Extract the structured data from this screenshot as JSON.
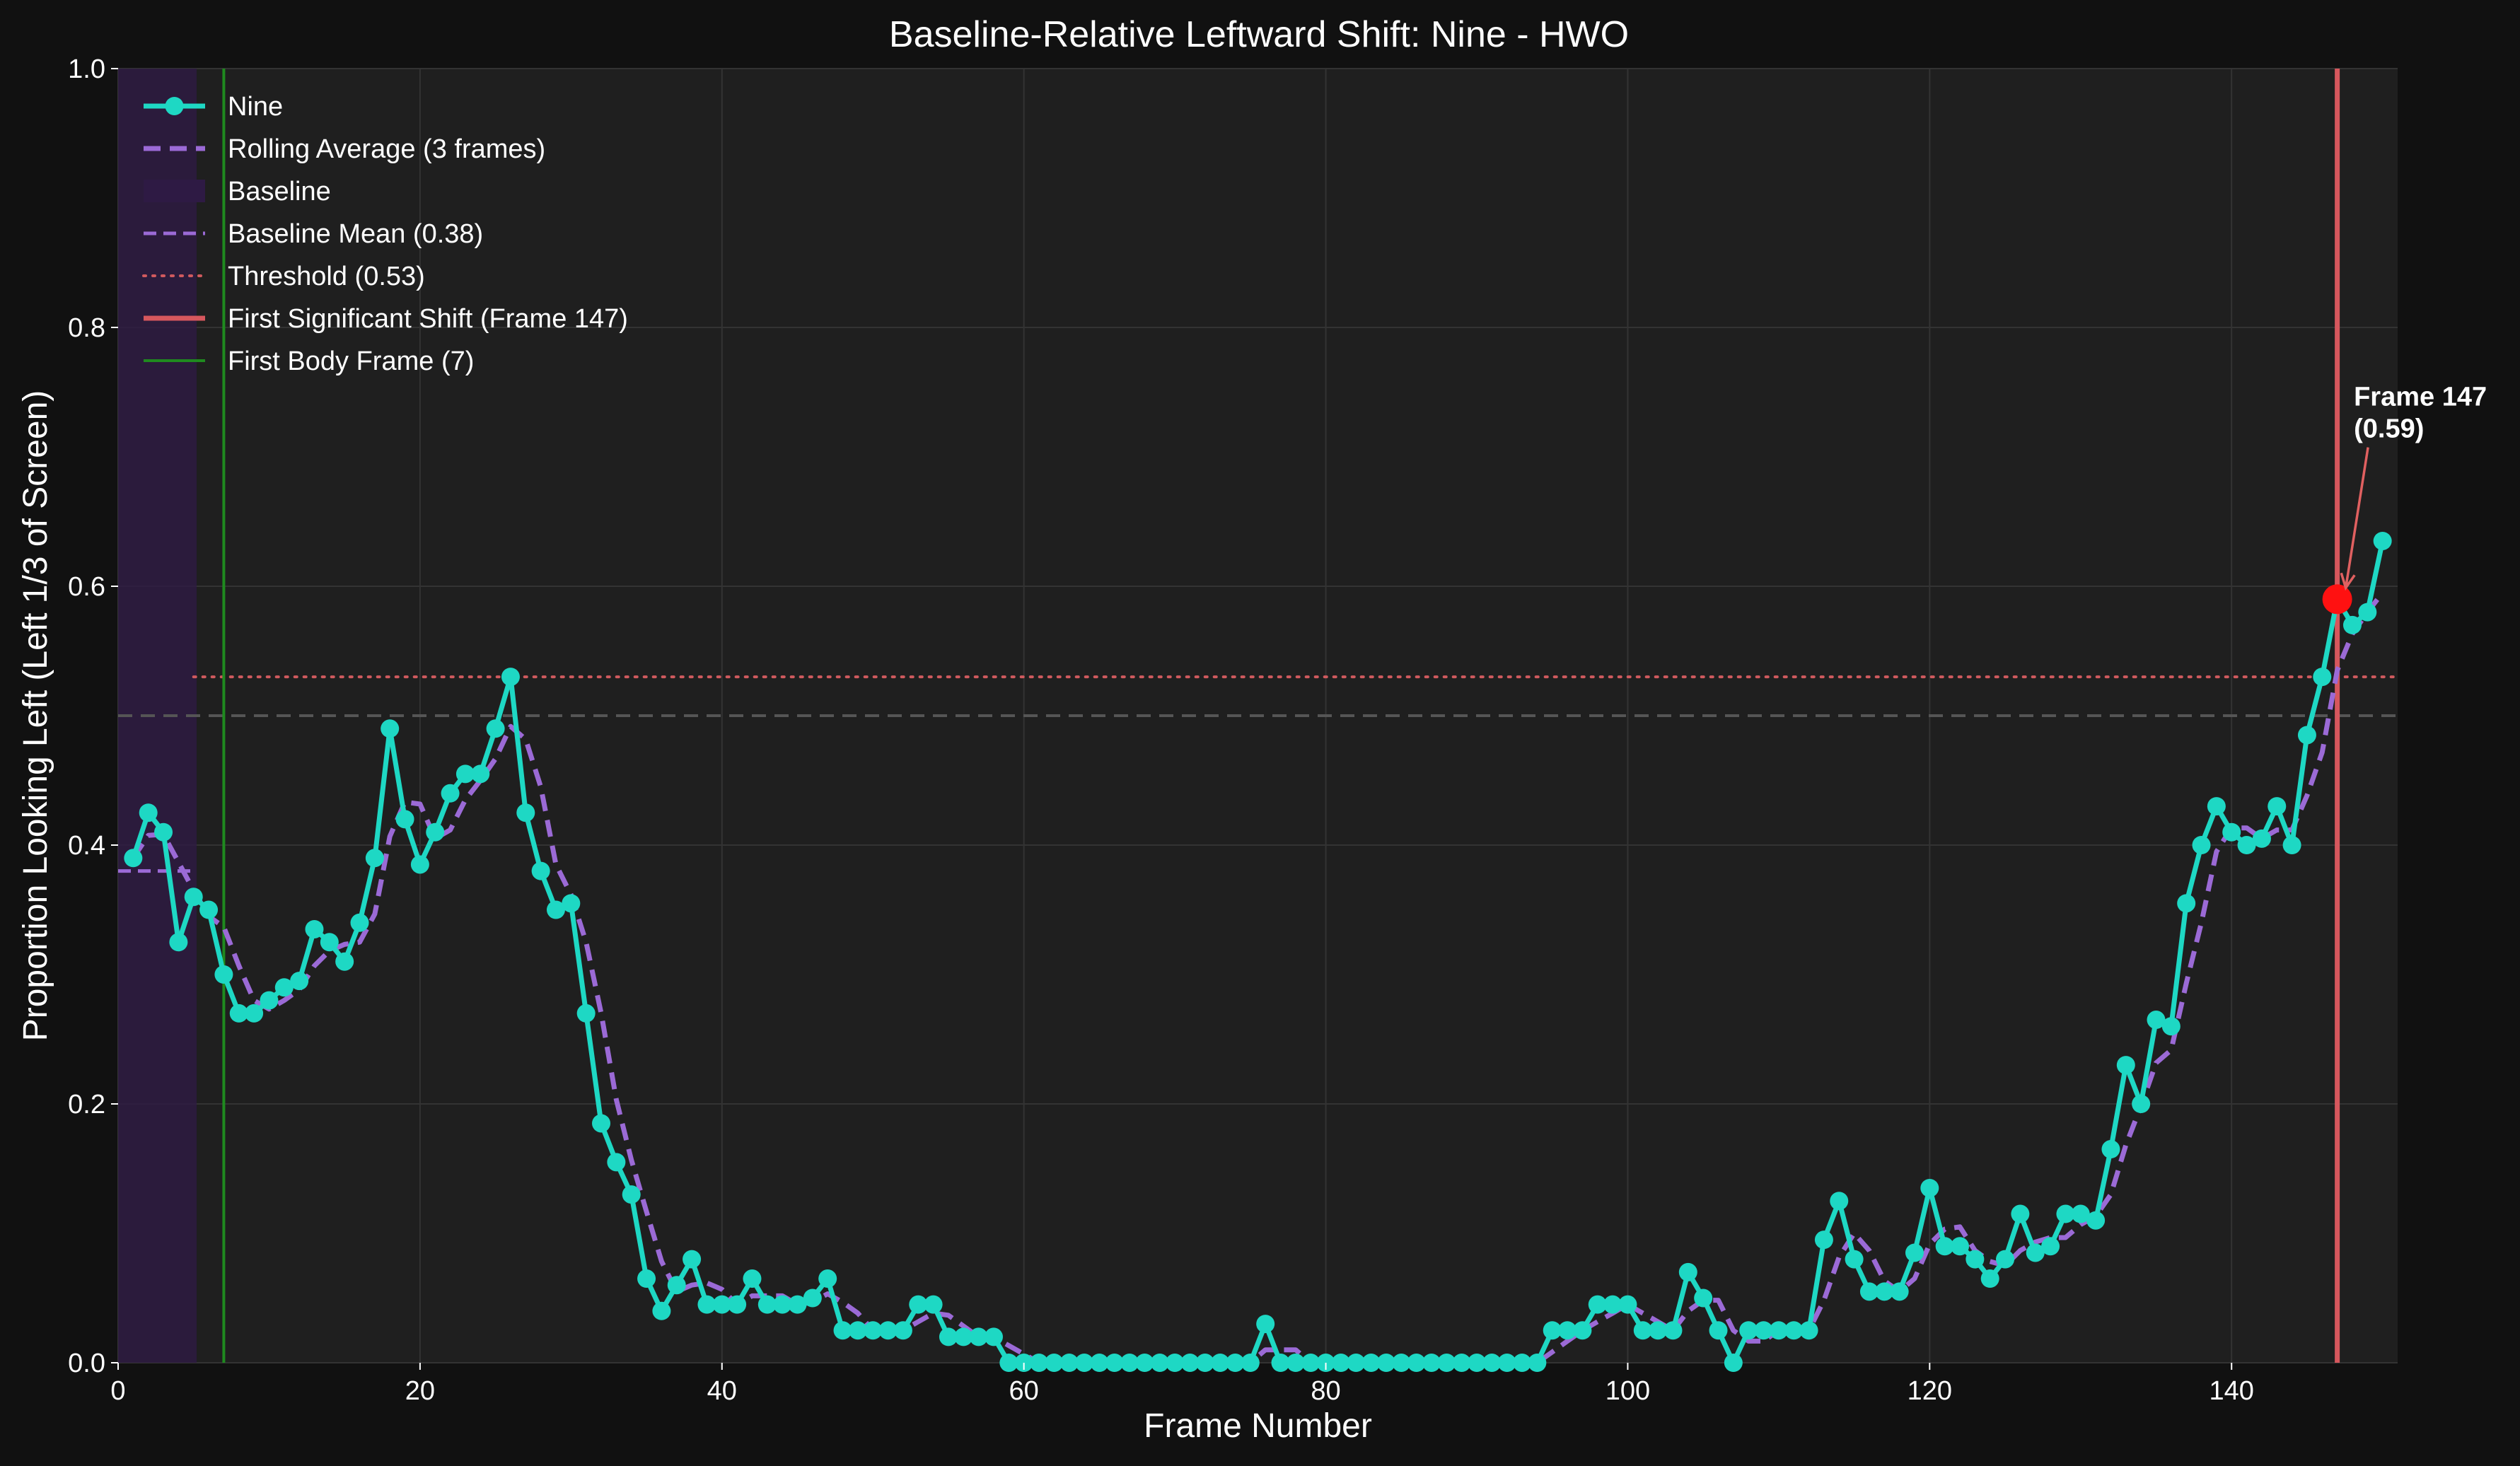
{
  "chart_data": {
    "type": "line",
    "title": "Baseline-Relative Leftward Shift: Nine - HWO",
    "xlabel": "Frame Number",
    "ylabel": "Proportion Looking Left (Left 1/3 of Screen)",
    "xlim": [
      0,
      151
    ],
    "ylim": [
      0,
      1.0
    ],
    "xticks": [
      0,
      20,
      40,
      60,
      80,
      100,
      120,
      140
    ],
    "yticks": [
      0.0,
      0.2,
      0.4,
      0.6,
      0.8,
      1.0
    ],
    "grid": true,
    "legend_position": "top-left",
    "colors": {
      "background": "#111111",
      "plot_background": "#1f1f1f",
      "series": "#1ed8c4",
      "rolling": "#9b6ad6",
      "baseline_band": "#2e1a44",
      "threshold": "#d05a5e",
      "shift_line": "#d6575d",
      "first_body": "#1f8a1f",
      "marker_highlight": "#ff1111",
      "center_line": "#555555"
    },
    "series": [
      {
        "name": "Nine",
        "x": [
          1,
          2,
          3,
          4,
          5,
          6,
          7,
          8,
          9,
          10,
          11,
          12,
          13,
          14,
          15,
          16,
          17,
          18,
          19,
          20,
          21,
          22,
          23,
          24,
          25,
          26,
          27,
          28,
          29,
          30,
          31,
          32,
          33,
          34,
          35,
          36,
          37,
          38,
          39,
          40,
          41,
          42,
          43,
          44,
          45,
          46,
          47,
          48,
          49,
          50,
          51,
          52,
          53,
          54,
          55,
          56,
          57,
          58,
          59,
          60,
          61,
          62,
          63,
          64,
          65,
          66,
          67,
          68,
          69,
          70,
          71,
          72,
          73,
          74,
          75,
          76,
          77,
          78,
          79,
          80,
          81,
          82,
          83,
          84,
          85,
          86,
          87,
          88,
          89,
          90,
          91,
          92,
          93,
          94,
          95,
          96,
          97,
          98,
          99,
          100,
          101,
          102,
          103,
          104,
          105,
          106,
          107,
          108,
          109,
          110,
          111,
          112,
          113,
          114,
          115,
          116,
          117,
          118,
          119,
          120,
          121,
          122,
          123,
          124,
          125,
          126,
          127,
          128,
          129,
          130,
          131,
          132,
          133,
          134,
          135,
          136,
          137,
          138,
          139,
          140,
          141,
          142,
          143,
          144,
          145,
          146,
          147,
          148,
          149,
          150
        ],
        "y": [
          0.39,
          0.425,
          0.41,
          0.325,
          0.36,
          0.35,
          0.3,
          0.27,
          0.27,
          0.28,
          0.29,
          0.295,
          0.335,
          0.325,
          0.31,
          0.34,
          0.39,
          0.49,
          0.42,
          0.385,
          0.41,
          0.44,
          0.455,
          0.455,
          0.49,
          0.53,
          0.425,
          0.38,
          0.35,
          0.355,
          0.27,
          0.185,
          0.155,
          0.13,
          0.065,
          0.04,
          0.06,
          0.08,
          0.045,
          0.045,
          0.045,
          0.065,
          0.045,
          0.045,
          0.045,
          0.05,
          0.065,
          0.025,
          0.025,
          0.025,
          0.025,
          0.025,
          0.045,
          0.045,
          0.02,
          0.02,
          0.02,
          0.02,
          0.0,
          0.0,
          0.0,
          0.0,
          0.0,
          0.0,
          0.0,
          0.0,
          0.0,
          0.0,
          0.0,
          0.0,
          0.0,
          0.0,
          0.0,
          0.0,
          0.0,
          0.03,
          0.0,
          0.0,
          0.0,
          0.0,
          0.0,
          0.0,
          0.0,
          0.0,
          0.0,
          0.0,
          0.0,
          0.0,
          0.0,
          0.0,
          0.0,
          0.0,
          0.0,
          0.0,
          0.025,
          0.025,
          0.025,
          0.045,
          0.045,
          0.045,
          0.025,
          0.025,
          0.025,
          0.07,
          0.05,
          0.025,
          0.0,
          0.025,
          0.025,
          0.025,
          0.025,
          0.025,
          0.095,
          0.125,
          0.08,
          0.055,
          0.055,
          0.055,
          0.085,
          0.135,
          0.09,
          0.09,
          0.08,
          0.065,
          0.08,
          0.115,
          0.085,
          0.09,
          0.115,
          0.115,
          0.11,
          0.165,
          0.23,
          0.2,
          0.265,
          0.26,
          0.355,
          0.4,
          0.43,
          0.41,
          0.4,
          0.405,
          0.43,
          0.4,
          0.485,
          0.53,
          0.59,
          0.57,
          0.58,
          0.635
        ]
      },
      {
        "name": "Rolling Average (3 frames)",
        "x": [
          1,
          2,
          3,
          4,
          5,
          6,
          7,
          8,
          9,
          10,
          11,
          12,
          13,
          14,
          15,
          16,
          17,
          18,
          19,
          20,
          21,
          22,
          23,
          24,
          25,
          26,
          27,
          28,
          29,
          30,
          31,
          32,
          33,
          34,
          35,
          36,
          37,
          38,
          39,
          40,
          41,
          42,
          43,
          44,
          45,
          46,
          47,
          48,
          49,
          50,
          51,
          52,
          53,
          54,
          55,
          56,
          57,
          58,
          59,
          60,
          61,
          62,
          63,
          64,
          65,
          66,
          67,
          68,
          69,
          70,
          71,
          72,
          73,
          74,
          75,
          76,
          77,
          78,
          79,
          80,
          81,
          82,
          83,
          84,
          85,
          86,
          87,
          88,
          89,
          90,
          91,
          92,
          93,
          94,
          95,
          96,
          97,
          98,
          99,
          100,
          101,
          102,
          103,
          104,
          105,
          106,
          107,
          108,
          109,
          110,
          111,
          112,
          113,
          114,
          115,
          116,
          117,
          118,
          119,
          120,
          121,
          122,
          123,
          124,
          125,
          126,
          127,
          128,
          129,
          130,
          131,
          132,
          133,
          134,
          135,
          136,
          137,
          138,
          139,
          140,
          141,
          142,
          143,
          144,
          145,
          146,
          147,
          148,
          149,
          150
        ],
        "y": [
          0.39,
          0.4075,
          0.4083,
          0.3867,
          0.365,
          0.345,
          0.3367,
          0.3067,
          0.28,
          0.2733,
          0.28,
          0.2883,
          0.3067,
          0.3183,
          0.3233,
          0.325,
          0.3467,
          0.4067,
          0.4333,
          0.4317,
          0.405,
          0.4117,
          0.435,
          0.45,
          0.4667,
          0.4917,
          0.4817,
          0.445,
          0.385,
          0.3617,
          0.325,
          0.27,
          0.2033,
          0.1567,
          0.1167,
          0.0783,
          0.055,
          0.06,
          0.0617,
          0.0567,
          0.045,
          0.0517,
          0.0517,
          0.0517,
          0.045,
          0.0467,
          0.0533,
          0.0467,
          0.0383,
          0.025,
          0.025,
          0.025,
          0.0317,
          0.0383,
          0.0367,
          0.0283,
          0.02,
          0.02,
          0.0133,
          0.0067,
          0.0,
          0.0,
          0.0,
          0.0,
          0.0,
          0.0,
          0.0,
          0.0,
          0.0,
          0.0,
          0.0,
          0.0,
          0.0,
          0.0,
          0.0,
          0.01,
          0.01,
          0.01,
          0.0,
          0.0,
          0.0,
          0.0,
          0.0,
          0.0,
          0.0,
          0.0,
          0.0,
          0.0,
          0.0,
          0.0,
          0.0,
          0.0,
          0.0,
          0.0,
          0.0083,
          0.0167,
          0.025,
          0.0317,
          0.0383,
          0.045,
          0.0383,
          0.0317,
          0.025,
          0.04,
          0.0483,
          0.0483,
          0.025,
          0.0167,
          0.0167,
          0.025,
          0.025,
          0.025,
          0.0483,
          0.0817,
          0.1,
          0.0867,
          0.0633,
          0.055,
          0.065,
          0.0917,
          0.1033,
          0.105,
          0.0867,
          0.0783,
          0.075,
          0.0867,
          0.0933,
          0.0967,
          0.0967,
          0.1067,
          0.1133,
          0.13,
          0.1683,
          0.1983,
          0.2317,
          0.2417,
          0.2933,
          0.34,
          0.395,
          0.4133,
          0.4133,
          0.405,
          0.4117,
          0.4117,
          0.4383,
          0.4717,
          0.535,
          0.5633,
          0.58,
          0.595
        ]
      }
    ],
    "highlight_point": {
      "x": 147,
      "y": 0.59
    },
    "annotation": {
      "line1": "Frame 147",
      "line2": "(0.59)",
      "text_x": 148.1,
      "text_y": 0.715
    },
    "baseline_band": {
      "x_start": 0,
      "x_end": 5.2
    },
    "baseline_mean": {
      "value": 0.38,
      "x_start": 0,
      "x_end": 5
    },
    "threshold": {
      "value": 0.53,
      "x_start": 5
    },
    "first_shift_frame": 147,
    "first_body_frame": 7,
    "center_reference": 0.5,
    "legend": [
      {
        "label": "Nine",
        "kind": "marker-line"
      },
      {
        "label": "Rolling Average (3 frames)",
        "kind": "rolling"
      },
      {
        "label": "Baseline",
        "kind": "band"
      },
      {
        "label": "Baseline Mean (0.38)",
        "kind": "mean"
      },
      {
        "label": "Threshold (0.53)",
        "kind": "threshold"
      },
      {
        "label": "First Significant Shift (Frame 147)",
        "kind": "shift"
      },
      {
        "label": "First Body Frame (7)",
        "kind": "body"
      }
    ]
  }
}
